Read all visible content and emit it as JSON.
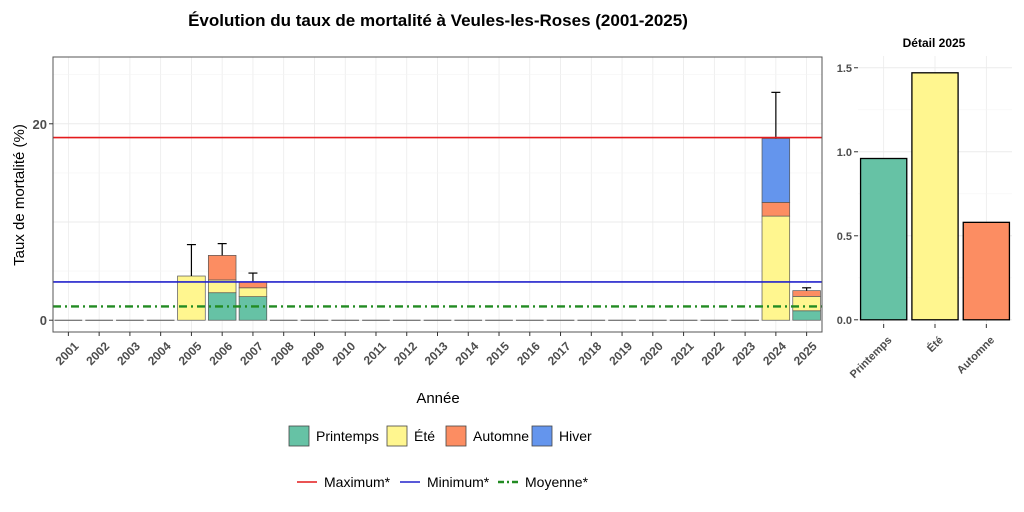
{
  "chart_data": [
    {
      "type": "bar",
      "stacked": true,
      "title": "Évolution du taux de mortalité à Veules-les-Roses (2001-2025)",
      "xlabel": "Année",
      "ylabel": "Taux de mortalité (%)",
      "ylim": [
        -1.2,
        26.8
      ],
      "yticks": [
        0,
        20
      ],
      "grid": true,
      "legend_position": "bottom",
      "categories": [
        "2001",
        "2002",
        "2003",
        "2004",
        "2005",
        "2006",
        "2007",
        "2008",
        "2009",
        "2010",
        "2011",
        "2012",
        "2013",
        "2014",
        "2015",
        "2016",
        "2017",
        "2018",
        "2019",
        "2020",
        "2021",
        "2022",
        "2023",
        "2024",
        "2025"
      ],
      "series": [
        {
          "name": "Printemps",
          "color": "#66C2A5",
          "values": [
            0,
            0,
            0,
            0,
            0,
            2.8,
            2.4,
            0,
            0,
            0,
            0,
            0,
            0,
            0,
            0,
            0,
            0,
            0,
            0,
            0,
            0,
            0,
            0,
            0,
            0.96
          ]
        },
        {
          "name": "Été",
          "color": "#FFF68F",
          "values": [
            0,
            0,
            0,
            0,
            4.5,
            1.3,
            0.9,
            0,
            0,
            0,
            0,
            0,
            0,
            0,
            0,
            0,
            0,
            0,
            0,
            0,
            0,
            0,
            0,
            10.6,
            1.47
          ]
        },
        {
          "name": "Automne",
          "color": "#FC8D62",
          "values": [
            0,
            0,
            0,
            0,
            0,
            2.5,
            0.6,
            0,
            0,
            0,
            0,
            0,
            0,
            0,
            0,
            0,
            0,
            0,
            0,
            0,
            0,
            0,
            0,
            1.4,
            0.58
          ]
        },
        {
          "name": "Hiver",
          "color": "#6495ED",
          "values": [
            0,
            0,
            0,
            0,
            0,
            0,
            0,
            0,
            0,
            0,
            0,
            0,
            0,
            0,
            0,
            0,
            0,
            0,
            0,
            0,
            0,
            0,
            0,
            6.5,
            0
          ]
        }
      ],
      "error_bar_tops": [
        null,
        null,
        null,
        null,
        7.7,
        7.8,
        4.8,
        null,
        null,
        null,
        null,
        null,
        null,
        null,
        null,
        null,
        null,
        null,
        null,
        null,
        null,
        null,
        null,
        23.2,
        3.3
      ],
      "reference_lines": [
        {
          "name": "Maximum*",
          "value": 18.6,
          "color": "#E41A1C",
          "style": "solid"
        },
        {
          "name": "Minimum*",
          "value": 3.9,
          "color": "#2222CC",
          "style": "solid"
        },
        {
          "name": "Moyenne*",
          "value": 1.4,
          "color": "#228B22",
          "style": "dotdash"
        }
      ]
    },
    {
      "type": "bar",
      "title": "Détail 2025",
      "categories": [
        "Printemps",
        "Été",
        "Automne"
      ],
      "values": [
        0.96,
        1.47,
        0.58
      ],
      "colors": [
        "#66C2A5",
        "#FFF68F",
        "#FC8D62"
      ],
      "ylim": [
        -0.025,
        1.57
      ],
      "yticks": [
        0.0,
        0.5,
        1.0,
        1.5
      ],
      "ytick_labels": [
        "0.0",
        "0.5",
        "1.0",
        "1.5"
      ],
      "grid": true
    }
  ]
}
